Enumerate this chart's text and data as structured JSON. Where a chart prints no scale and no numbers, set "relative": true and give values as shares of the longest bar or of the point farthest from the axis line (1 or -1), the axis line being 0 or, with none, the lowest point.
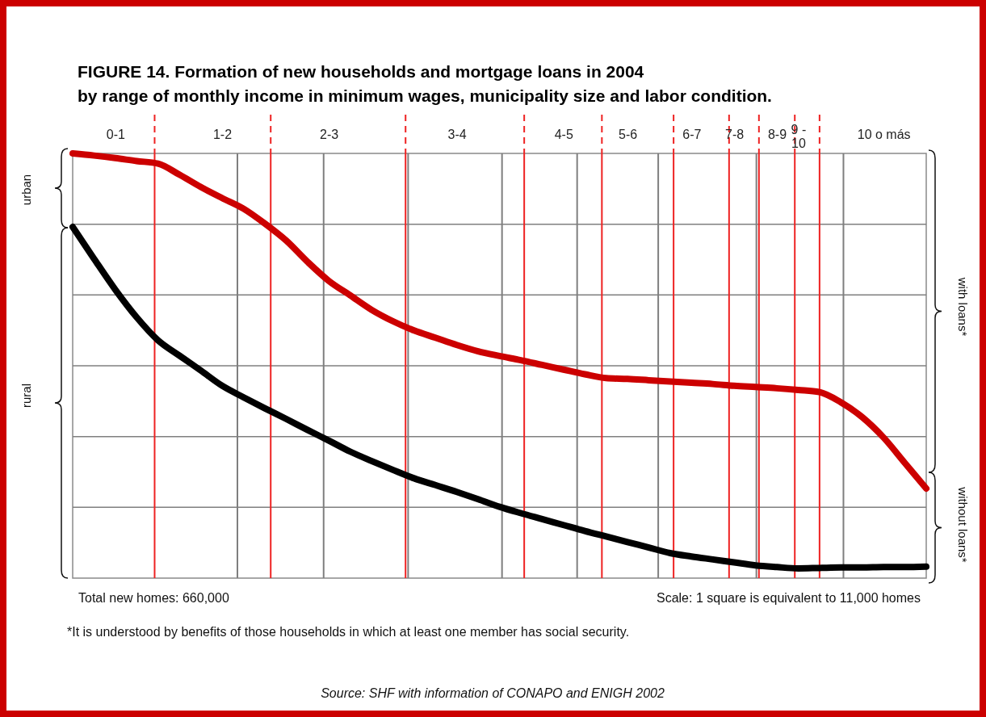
{
  "chart_data": {
    "type": "line",
    "title": "FIGURE 14. Formation of new households and mortgage loans in 2004",
    "subtitle": "by range of monthly income in minimum wages, municipality size and labor condition.",
    "relative": true,
    "grid": true,
    "categories": [
      null,
      null,
      "0-1",
      null,
      null,
      null,
      null,
      "1-2",
      null,
      null,
      null,
      null,
      "2-3",
      null,
      null,
      null,
      null,
      null,
      "3-4",
      null,
      null,
      null,
      null,
      "4-5",
      null,
      null,
      "5-6",
      null,
      null,
      "6-7",
      null,
      "7-8",
      null,
      "8-9",
      "9 - 10",
      null,
      null,
      null,
      "10 o más",
      null,
      null
    ],
    "series": [
      {
        "color": "#cc0000",
        "values": [
          1.0,
          0.995,
          0.989,
          0.982,
          0.976,
          0.95,
          0.921,
          0.895,
          0.87,
          0.835,
          0.795,
          0.745,
          0.7,
          0.666,
          0.632,
          0.605,
          0.583,
          0.566,
          0.549,
          0.534,
          0.523,
          0.513,
          0.502,
          0.491,
          0.48,
          0.471,
          0.469,
          0.466,
          0.463,
          0.46,
          0.457,
          0.453,
          0.45,
          0.447,
          0.443,
          0.438,
          0.414,
          0.379,
          0.331,
          0.271,
          0.211
        ]
      },
      {
        "color": "#000000",
        "values": [
          0.827,
          0.752,
          0.679,
          0.614,
          0.56,
          0.524,
          0.489,
          0.453,
          0.426,
          0.4,
          0.375,
          0.349,
          0.324,
          0.298,
          0.276,
          0.255,
          0.235,
          0.219,
          0.203,
          0.186,
          0.168,
          0.153,
          0.139,
          0.125,
          0.111,
          0.098,
          0.085,
          0.072,
          0.059,
          0.051,
          0.044,
          0.037,
          0.03,
          0.026,
          0.023,
          0.024,
          0.025,
          0.025,
          0.026,
          0.026,
          0.027
        ]
      }
    ],
    "annotations": [
      "urban",
      "rural",
      "with loans*",
      "without loans*",
      "Total new homes: 660,000",
      "Scale: 1 square is equivalent to 11,000 homes",
      "*It is understood by benefits of those households in which at least one member has social security.",
      "Source: SHF with information of CONAPO and ENIGH 2002"
    ]
  }
}
